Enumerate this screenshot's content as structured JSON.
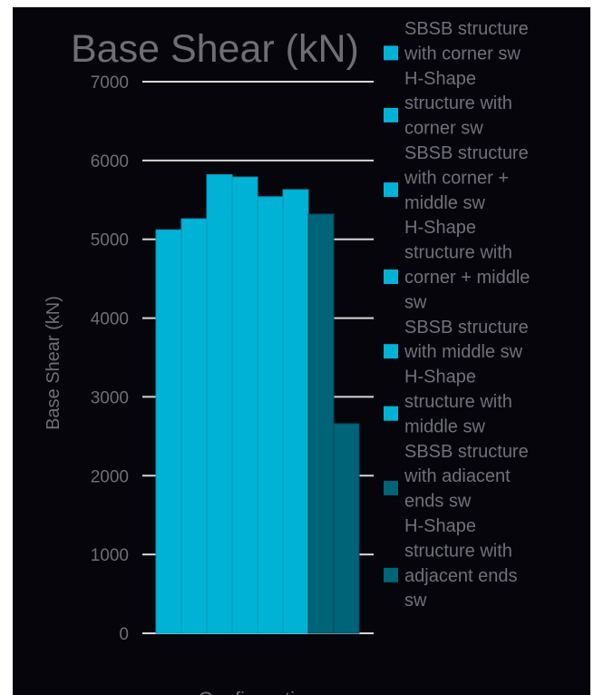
{
  "chart_data": {
    "type": "bar",
    "title": "Base Shear (kN)",
    "ylabel": "Base Shear (kN)",
    "xlabel": "Configuration",
    "ylim": [
      0,
      7000
    ],
    "y_ticks": [
      0,
      1000,
      2000,
      3000,
      4000,
      5000,
      6000,
      7000
    ],
    "grid": true,
    "legend_position": "right",
    "series": [
      {
        "name": "SBSB structure with corner sw",
        "value": 5120,
        "color": "#00b3d6"
      },
      {
        "name": "H-Shape structure with corner sw",
        "value": 5260,
        "color": "#00b3d6"
      },
      {
        "name": "SBSB structure with corner + middle sw",
        "value": 5820,
        "color": "#00b3d6"
      },
      {
        "name": "H-Shape structure with corner + middle sw",
        "value": 5790,
        "color": "#00b3d6"
      },
      {
        "name": "SBSB  structure with middle sw",
        "value": 5540,
        "color": "#00b3d6"
      },
      {
        "name": "H-Shape structure with middle sw",
        "value": 5630,
        "color": "#00b3d6"
      },
      {
        "name": "SBSB structure with adiacent ends sw",
        "value": 5320,
        "color": "#006478"
      },
      {
        "name": "H-Shape structure with adjacent ends sw",
        "value": 2660,
        "color": "#006478"
      }
    ]
  }
}
